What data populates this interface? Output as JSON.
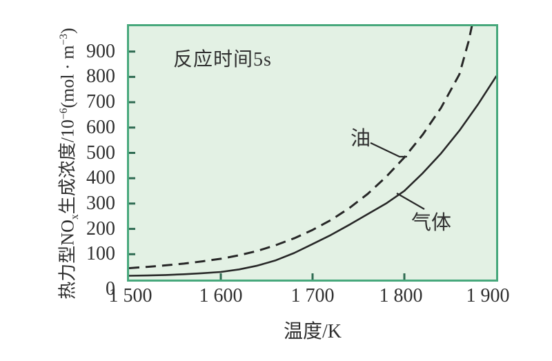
{
  "page": {
    "background": "#ffffff"
  },
  "annotations": {
    "reaction_time": "反应时间5s",
    "oil_label": "油",
    "gas_label": "气体"
  },
  "chart_data": {
    "type": "line",
    "annotation": "反应时间5s",
    "xlabel": "温度/K",
    "ylabel": "热力型NOx生成浓度/10−6(mol·m−3)",
    "ylabel_parts": {
      "p1": "热力型NO",
      "sub1": "x",
      "p2": "生成浓度/10",
      "sup1": "−6",
      "p3": "(mol · m",
      "sup2": "−3",
      "p4": ")"
    },
    "xlim": [
      1500,
      1900
    ],
    "ylim": [
      0,
      1000
    ],
    "grid": false,
    "legend_position": "inline-annotations",
    "x_tick_marks": [
      1600,
      1700,
      1800
    ],
    "x_tick_labels": [
      {
        "value": 1500,
        "label": "1 500",
        "dx": 2
      },
      {
        "value": 1600,
        "label": "1 600",
        "dx": 0
      },
      {
        "value": 1700,
        "label": "1 700",
        "dx": 0
      },
      {
        "value": 1800,
        "label": "1 800",
        "dx": -5
      },
      {
        "value": 1900,
        "label": "1 900",
        "dx": -12
      }
    ],
    "y_tick_marks": [
      100,
      200,
      300,
      400,
      500,
      600,
      700,
      800,
      900
    ],
    "y_tick_labels": [
      {
        "value": 0,
        "label": "0",
        "dy": 14
      },
      {
        "value": 100,
        "label": "100",
        "dy": 0
      },
      {
        "value": 200,
        "label": "200",
        "dy": 0
      },
      {
        "value": 300,
        "label": "300",
        "dy": 0
      },
      {
        "value": 400,
        "label": "400",
        "dy": 0
      },
      {
        "value": 500,
        "label": "500",
        "dy": 0
      },
      {
        "value": 600,
        "label": "600",
        "dy": 0
      },
      {
        "value": 700,
        "label": "700",
        "dy": 0
      },
      {
        "value": 800,
        "label": "800",
        "dy": 0
      },
      {
        "value": 900,
        "label": "900",
        "dy": 0
      }
    ],
    "series": [
      {
        "name": "油",
        "id": "oil",
        "line_style": "dashed",
        "x": [
          1500,
          1520,
          1540,
          1560,
          1580,
          1600,
          1620,
          1640,
          1660,
          1680,
          1700,
          1720,
          1740,
          1760,
          1780,
          1800,
          1820,
          1840,
          1860,
          1870,
          1878
        ],
        "y": [
          45,
          50,
          56,
          63,
          72,
          82,
          96,
          113,
          136,
          163,
          196,
          235,
          282,
          338,
          405,
          482,
          572,
          678,
          810,
          940,
          1075
        ]
      },
      {
        "name": "气体",
        "id": "gas",
        "line_style": "solid",
        "x": [
          1500,
          1520,
          1540,
          1560,
          1580,
          1600,
          1620,
          1640,
          1660,
          1680,
          1700,
          1720,
          1740,
          1760,
          1780,
          1800,
          1820,
          1840,
          1860,
          1880,
          1900
        ],
        "y": [
          15,
          16,
          18,
          21,
          25,
          30,
          40,
          55,
          76,
          105,
          140,
          176,
          216,
          258,
          300,
          350,
          420,
          498,
          588,
          690,
          802
        ]
      }
    ],
    "colors": {
      "page_bg": "#ffffff",
      "plot_bg": "#e3f1e4",
      "plot_border": "#47a87c",
      "curve": "#272727",
      "tick": "#2f6b52",
      "text": "#2f2f2f"
    }
  }
}
